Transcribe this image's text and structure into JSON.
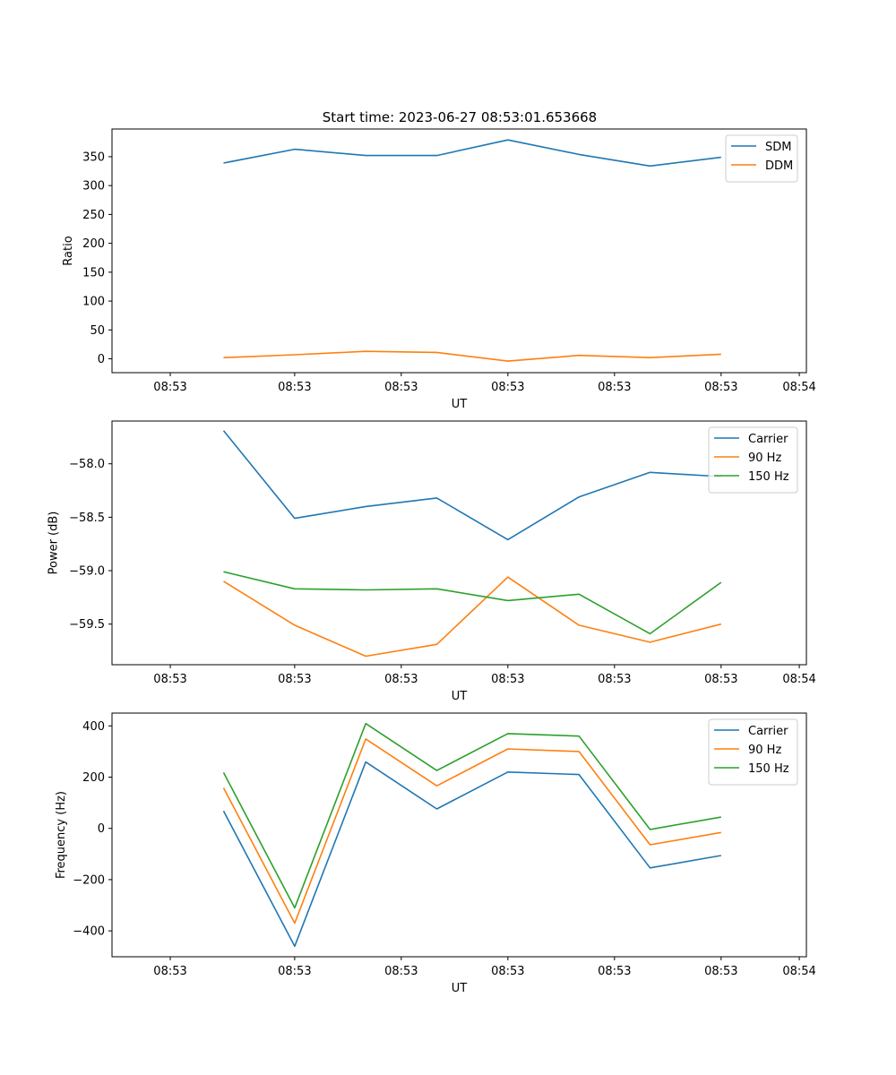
{
  "figure": {
    "title": "Start time: 2023-06-27 08:53:01.653668"
  },
  "chart_data": [
    {
      "type": "line",
      "title": "Start time: 2023-06-27 08:53:01.653668",
      "xlabel": "UT",
      "ylabel": "Ratio",
      "x_tick_labels": [
        "08:53",
        "08:53",
        "08:53",
        "08:53",
        "08:53",
        "08:53",
        "08:54"
      ],
      "y_ticks": [
        0,
        50,
        100,
        150,
        200,
        250,
        300,
        350
      ],
      "y_tick_labels": [
        "0",
        "50",
        "100",
        "150",
        "200",
        "250",
        "300",
        "350"
      ],
      "ylim": [
        -24,
        398
      ],
      "legend": "upper right",
      "series": [
        {
          "name": "SDM",
          "color": "#1f77b4",
          "values": [
            339,
            363,
            352,
            352,
            379,
            354,
            334,
            349
          ]
        },
        {
          "name": "DDM",
          "color": "#ff7f0e",
          "values": [
            2,
            7,
            13,
            11,
            -4,
            6,
            2,
            8
          ]
        }
      ]
    },
    {
      "type": "line",
      "xlabel": "UT",
      "ylabel": "Power (dB)",
      "x_tick_labels": [
        "08:53",
        "08:53",
        "08:53",
        "08:53",
        "08:53",
        "08:53",
        "08:54"
      ],
      "y_ticks": [
        -59.5,
        -59.0,
        -58.5,
        -58.0
      ],
      "y_tick_labels": [
        "−59.5",
        "−59.0",
        "−58.5",
        "−58.0"
      ],
      "ylim": [
        -59.88,
        -57.6
      ],
      "legend": "upper right",
      "series": [
        {
          "name": "Carrier",
          "color": "#1f77b4",
          "values": [
            -57.69,
            -58.51,
            -58.4,
            -58.32,
            -58.71,
            -58.31,
            -58.08,
            -58.12
          ]
        },
        {
          "name": "90 Hz",
          "color": "#ff7f0e",
          "values": [
            -59.1,
            -59.51,
            -59.8,
            -59.69,
            -59.06,
            -59.51,
            -59.67,
            -59.5
          ]
        },
        {
          "name": "150 Hz",
          "color": "#2ca02c",
          "values": [
            -59.01,
            -59.17,
            -59.18,
            -59.17,
            -59.28,
            -59.22,
            -59.59,
            -59.11
          ]
        }
      ]
    },
    {
      "type": "line",
      "xlabel": "UT",
      "ylabel": "Frequency (Hz)",
      "x_tick_labels": [
        "08:53",
        "08:53",
        "08:53",
        "08:53",
        "08:53",
        "08:53",
        "08:54"
      ],
      "y_ticks": [
        -400,
        -200,
        0,
        200,
        400
      ],
      "y_tick_labels": [
        "−400",
        "−200",
        "0",
        "200",
        "400"
      ],
      "ylim": [
        -501,
        450
      ],
      "legend": "upper right",
      "series": [
        {
          "name": "Carrier",
          "color": "#1f77b4",
          "values": [
            68,
            -460,
            259,
            76,
            220,
            210,
            -154,
            -106
          ]
        },
        {
          "name": "90 Hz",
          "color": "#ff7f0e",
          "values": [
            158,
            -370,
            349,
            166,
            310,
            300,
            -64,
            -16
          ]
        },
        {
          "name": "150 Hz",
          "color": "#2ca02c",
          "values": [
            218,
            -310,
            409,
            226,
            370,
            360,
            -4,
            44
          ]
        }
      ]
    }
  ]
}
